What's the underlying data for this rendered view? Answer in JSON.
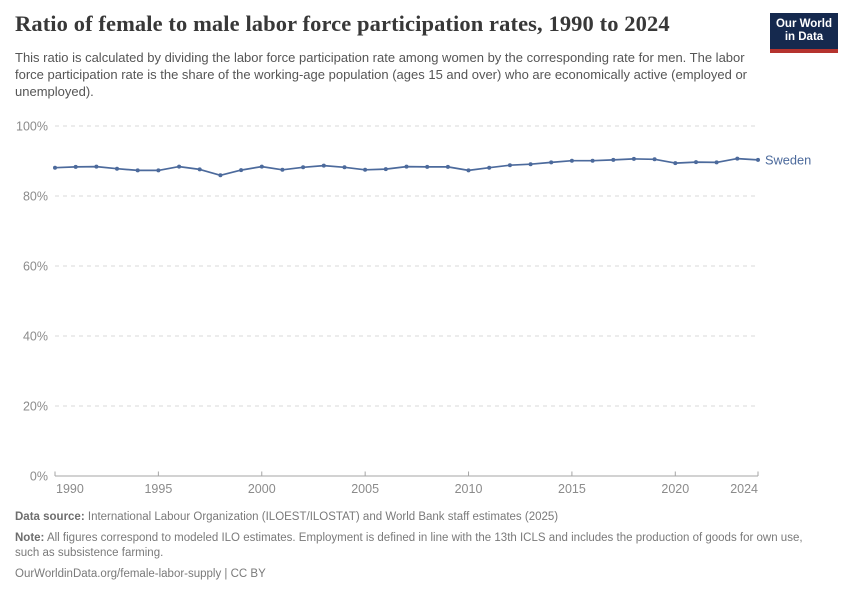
{
  "header": {
    "title": "Ratio of female to male labor force participation rates, 1990 to 2024",
    "subtitle": "This ratio is calculated by dividing the labor force participation rate among women by the corresponding rate for men. The labor force participation rate is the share of the working-age population (ages 15 and over) who are economically active (employed or unemployed).",
    "logo": {
      "line1": "Our World",
      "line2": "in Data",
      "bg_color": "#15294E",
      "accent_color": "#B5332E"
    }
  },
  "chart_data": {
    "type": "line",
    "title": "Ratio of female to male labor force participation rates, 1990 to 2024",
    "x": [
      1990,
      1991,
      1992,
      1993,
      1994,
      1995,
      1996,
      1997,
      1998,
      1999,
      2000,
      2001,
      2002,
      2003,
      2004,
      2005,
      2006,
      2007,
      2008,
      2009,
      2010,
      2011,
      2012,
      2013,
      2014,
      2015,
      2016,
      2017,
      2018,
      2019,
      2020,
      2021,
      2022,
      2023,
      2024
    ],
    "series": [
      {
        "name": "Sweden",
        "color": "#4C6A9C",
        "values": [
          88.1,
          88.3,
          88.4,
          87.8,
          87.3,
          87.3,
          88.4,
          87.6,
          85.9,
          87.4,
          88.4,
          87.5,
          88.2,
          88.7,
          88.2,
          87.5,
          87.7,
          88.4,
          88.3,
          88.3,
          87.3,
          88.1,
          88.8,
          89.1,
          89.6,
          90.1,
          90.1,
          90.3,
          90.6,
          90.5,
          89.4,
          89.7,
          89.6,
          90.7,
          90.3
        ]
      }
    ],
    "ylim": [
      0,
      100
    ],
    "yticks": [
      0,
      20,
      40,
      60,
      80,
      100
    ],
    "ytick_suffix": "%",
    "xticks": [
      1990,
      1995,
      2000,
      2005,
      2010,
      2015,
      2020,
      2024
    ],
    "grid": "horizontal-dashed",
    "legend_position": "end-of-line-label",
    "colors": {
      "gridline": "#e0e0e0",
      "axis": "#a5a5a5",
      "tick_label": "#8b8b8b"
    }
  },
  "footer": {
    "source_label": "Data source:",
    "source_text": "International Labour Organization (ILOEST/ILOSTAT) and World Bank staff estimates (2025)",
    "note_label": "Note:",
    "note_text": "All figures correspond to modeled ILO estimates. Employment is defined in line with the 13th ICLS and includes the production of goods for own use, such as subsistence farming.",
    "url_text": "OurWorldinData.org/female-labor-supply | CC BY"
  }
}
